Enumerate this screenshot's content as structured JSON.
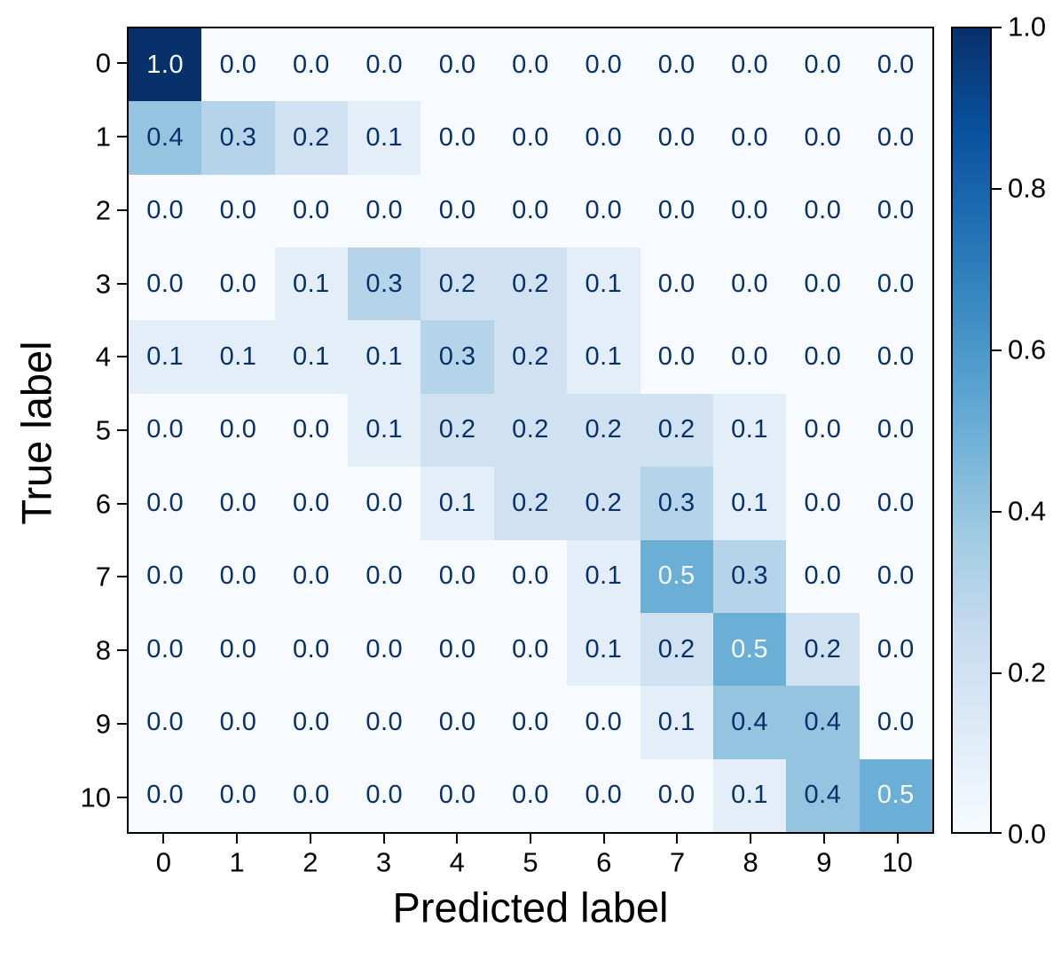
{
  "chart_data": {
    "type": "heatmap",
    "title": "",
    "xlabel": "Predicted label",
    "ylabel": "True label",
    "x_tick_labels": [
      "0",
      "1",
      "2",
      "3",
      "4",
      "5",
      "6",
      "7",
      "8",
      "9",
      "10"
    ],
    "y_tick_labels": [
      "0",
      "1",
      "2",
      "3",
      "4",
      "5",
      "6",
      "7",
      "8",
      "9",
      "10"
    ],
    "matrix": [
      [
        1.0,
        0.0,
        0.0,
        0.0,
        0.0,
        0.0,
        0.0,
        0.0,
        0.0,
        0.0,
        0.0
      ],
      [
        0.4,
        0.3,
        0.2,
        0.1,
        0.0,
        0.0,
        0.0,
        0.0,
        0.0,
        0.0,
        0.0
      ],
      [
        0.0,
        0.0,
        0.0,
        0.0,
        0.0,
        0.0,
        0.0,
        0.0,
        0.0,
        0.0,
        0.0
      ],
      [
        0.0,
        0.0,
        0.1,
        0.3,
        0.2,
        0.2,
        0.1,
        0.0,
        0.0,
        0.0,
        0.0
      ],
      [
        0.1,
        0.1,
        0.1,
        0.1,
        0.3,
        0.2,
        0.1,
        0.0,
        0.0,
        0.0,
        0.0
      ],
      [
        0.0,
        0.0,
        0.0,
        0.1,
        0.2,
        0.2,
        0.2,
        0.2,
        0.1,
        0.0,
        0.0
      ],
      [
        0.0,
        0.0,
        0.0,
        0.0,
        0.1,
        0.2,
        0.2,
        0.3,
        0.1,
        0.0,
        0.0
      ],
      [
        0.0,
        0.0,
        0.0,
        0.0,
        0.0,
        0.0,
        0.1,
        0.5,
        0.3,
        0.0,
        0.0
      ],
      [
        0.0,
        0.0,
        0.0,
        0.0,
        0.0,
        0.0,
        0.1,
        0.2,
        0.5,
        0.2,
        0.0
      ],
      [
        0.0,
        0.0,
        0.0,
        0.0,
        0.0,
        0.0,
        0.0,
        0.1,
        0.4,
        0.4,
        0.0
      ],
      [
        0.0,
        0.0,
        0.0,
        0.0,
        0.0,
        0.0,
        0.0,
        0.0,
        0.1,
        0.4,
        0.5
      ]
    ],
    "value_decimals": 1,
    "colormap": "Blues",
    "colormap_stops": [
      "#f7fbff",
      "#deebf7",
      "#c6dbef",
      "#9ecae1",
      "#6baed6",
      "#4292c6",
      "#2171b5",
      "#08519c",
      "#08306b"
    ],
    "cell_text_dark": "#08306b",
    "cell_text_light": "#f7fbff",
    "white_text_threshold": 0.5,
    "colorbar": {
      "min": 0.0,
      "max": 1.0,
      "tick_labels": [
        "0.0",
        "0.2",
        "0.4",
        "0.6",
        "0.8",
        "1.0"
      ],
      "tick_values": [
        0.0,
        0.2,
        0.4,
        0.6,
        0.8,
        1.0
      ],
      "position": "right"
    },
    "grid": false,
    "legend": false
  }
}
